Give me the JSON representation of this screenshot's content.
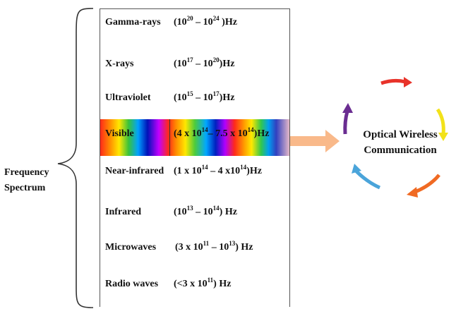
{
  "side_label": "Frequency Spectrum",
  "rows": [
    {
      "name": "Gamma-rays",
      "range_parts": [
        "(10",
        "20",
        " – 10",
        "24",
        " )Hz"
      ]
    },
    {
      "name": "X-rays",
      "range_parts": [
        "(10",
        "17",
        " – 10",
        "20",
        ")Hz"
      ]
    },
    {
      "name": "Ultraviolet",
      "range_parts": [
        "(10",
        "15",
        " – 10",
        "17",
        ")Hz"
      ]
    },
    {
      "name": "Visible",
      "range_parts": [
        "(4 x 10",
        "14",
        "– 7.5 x 10",
        "14",
        ")Hz"
      ]
    },
    {
      "name": "Near-infrared",
      "range_parts": [
        "(1 x 10",
        "14",
        " – 4 x10",
        "14",
        ")Hz"
      ]
    },
    {
      "name": "Infrared",
      "range_parts": [
        "(10",
        "13",
        " – 10",
        "14",
        ") Hz"
      ]
    },
    {
      "name": "Microwaves",
      "range_parts": [
        "(3 x 10",
        "11",
        " – 10",
        "13",
        ") Hz"
      ]
    },
    {
      "name": "Radio waves",
      "range_parts": [
        "(<3 x 10",
        "11",
        ") Hz"
      ]
    }
  ],
  "target_label": "Optical Wireless Communication",
  "colors": {
    "arrow": "#f9b98a",
    "cycle": [
      "#e8332a",
      "#f2e21a",
      "#f06a23",
      "#4aa4da",
      "#6a2d91"
    ]
  }
}
